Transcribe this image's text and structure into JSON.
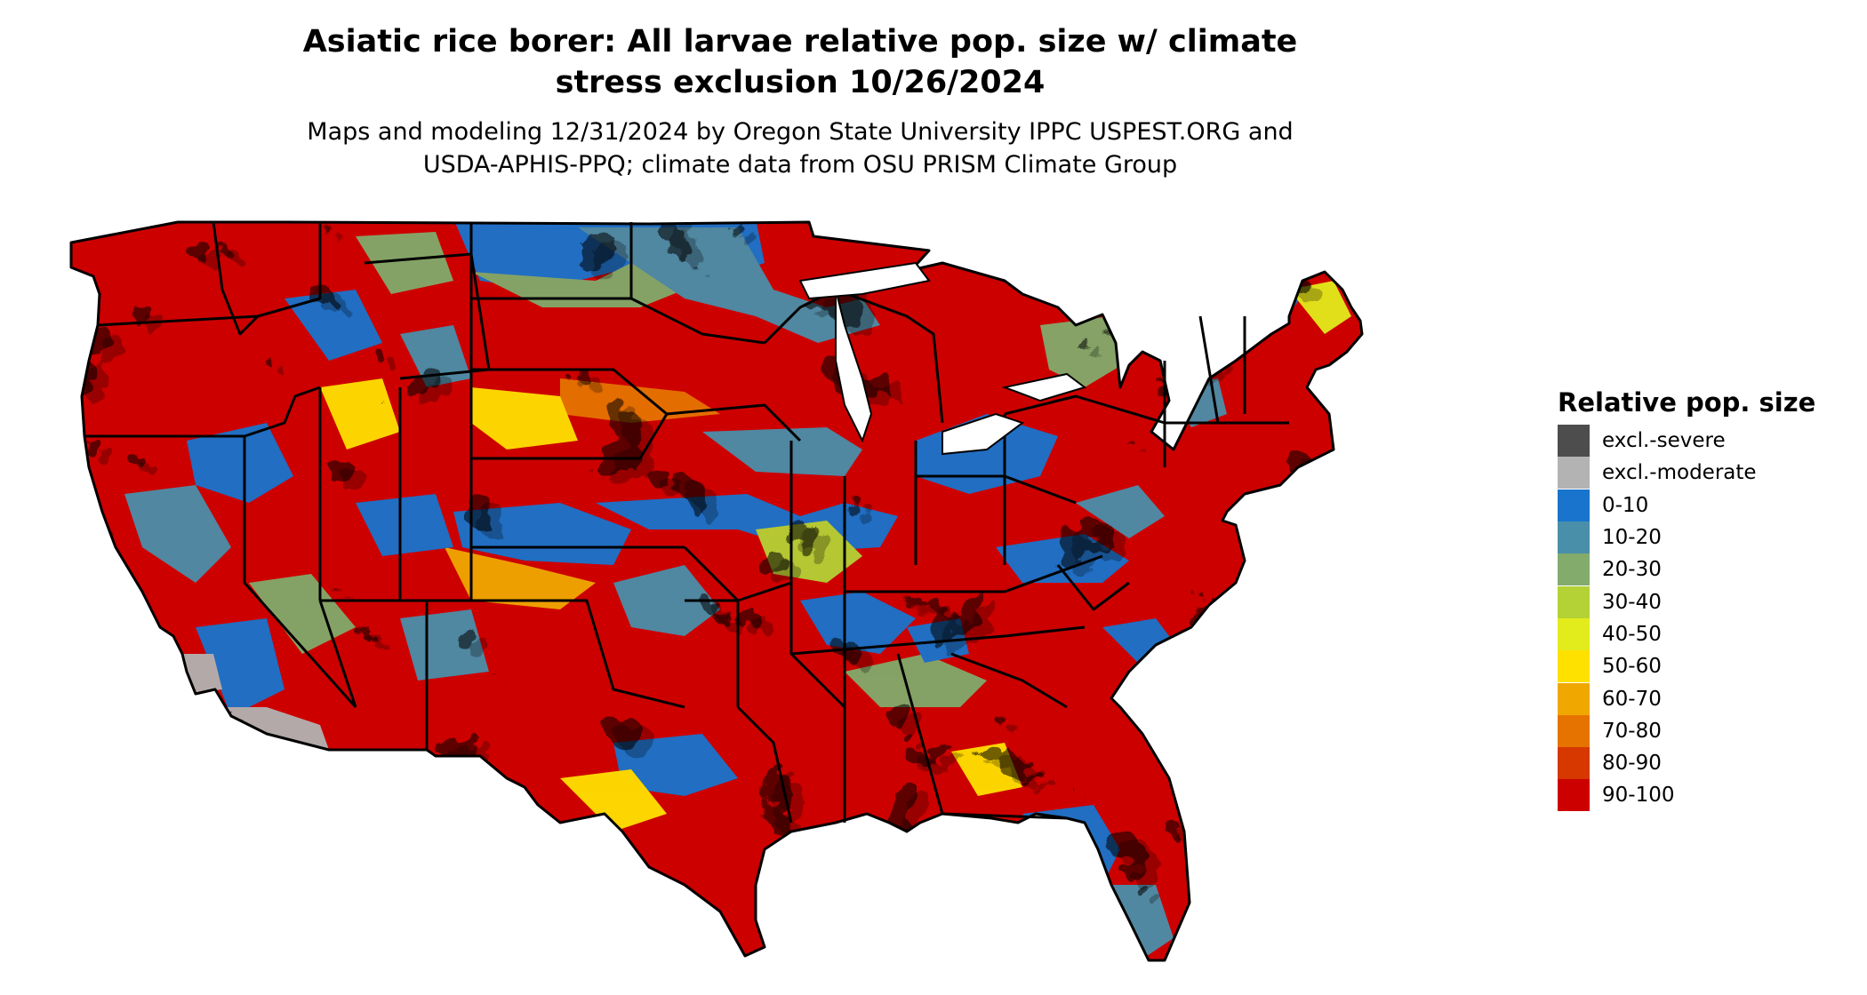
{
  "title": "Asiatic rice borer: All larvae relative pop. size w/ climate\nstress exclusion 10/26/2024",
  "subtitle": "Maps and modeling 12/31/2024 by Oregon State University IPPC USPEST.ORG and\nUSDA-APHIS-PPQ; climate data from OSU PRISM Climate Group",
  "map": {
    "region": "Contiguous United States",
    "ocean_color": "#ffffff",
    "border_color": "#000000"
  },
  "legend": {
    "title": "Relative pop. size",
    "items": [
      {
        "label": "excl.-severe",
        "color": "#4d4d4d"
      },
      {
        "label": "excl.-moderate",
        "color": "#b3b3b3"
      },
      {
        "label": "0-10",
        "color": "#1874cd"
      },
      {
        "label": "10-20",
        "color": "#4a8faa"
      },
      {
        "label": "20-30",
        "color": "#82ab6c"
      },
      {
        "label": "30-40",
        "color": "#b4d236"
      },
      {
        "label": "40-50",
        "color": "#e2eb1c"
      },
      {
        "label": "50-60",
        "color": "#ffe100"
      },
      {
        "label": "60-70",
        "color": "#f0a800"
      },
      {
        "label": "70-80",
        "color": "#e67300"
      },
      {
        "label": "80-90",
        "color": "#d63800"
      },
      {
        "label": "90-100",
        "color": "#cd0000"
      }
    ]
  }
}
